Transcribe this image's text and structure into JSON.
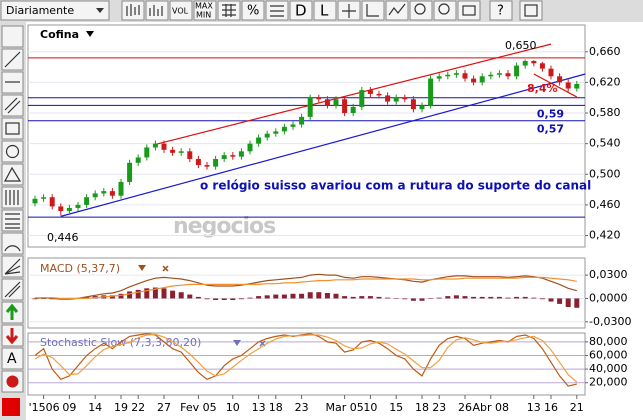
{
  "toolbar": {
    "period": "Diariamente",
    "vol": "VOL",
    "max": "MAX",
    "min": "MIN",
    "d": "D",
    "l": "L",
    "help": "?"
  },
  "left_tools": {
    "text_tool": "A"
  },
  "chart_data": [
    {
      "type": "candlestick",
      "title": "Cofina",
      "watermark": "negocios",
      "up_color": "#1a9a1a",
      "down_color": "#cc1a1a",
      "open": [
        0.462,
        0.468,
        0.47,
        0.458,
        0.452,
        0.456,
        0.46,
        0.47,
        0.475,
        0.478,
        0.472,
        0.49,
        0.515,
        0.522,
        0.535,
        0.54,
        0.532,
        0.528,
        0.53,
        0.52,
        0.512,
        0.51,
        0.52,
        0.525,
        0.523,
        0.53,
        0.54,
        0.548,
        0.553,
        0.556,
        0.562,
        0.565,
        0.575,
        0.6,
        0.598,
        0.59,
        0.598,
        0.58,
        0.588,
        0.61,
        0.605,
        0.603,
        0.595,
        0.6,
        0.598,
        0.585,
        0.59,
        0.625,
        0.628,
        0.63,
        0.632,
        0.625,
        0.62,
        0.628,
        0.63,
        0.632,
        0.628,
        0.642,
        0.648,
        0.645,
        0.638,
        0.628,
        0.62,
        0.612
      ],
      "high": [
        0.472,
        0.474,
        0.474,
        0.462,
        0.46,
        0.464,
        0.474,
        0.479,
        0.482,
        0.482,
        0.494,
        0.519,
        0.526,
        0.539,
        0.544,
        0.544,
        0.536,
        0.534,
        0.534,
        0.524,
        0.516,
        0.524,
        0.529,
        0.529,
        0.534,
        0.544,
        0.552,
        0.557,
        0.56,
        0.566,
        0.569,
        0.579,
        0.604,
        0.604,
        0.602,
        0.602,
        0.602,
        0.592,
        0.614,
        0.614,
        0.609,
        0.607,
        0.604,
        0.604,
        0.602,
        0.594,
        0.629,
        0.632,
        0.634,
        0.636,
        0.636,
        0.629,
        0.632,
        0.634,
        0.636,
        0.636,
        0.646,
        0.65,
        0.649,
        0.647,
        0.642,
        0.632,
        0.624,
        0.622
      ],
      "low": [
        0.458,
        0.464,
        0.454,
        0.446,
        0.448,
        0.452,
        0.456,
        0.466,
        0.471,
        0.468,
        0.468,
        0.486,
        0.511,
        0.518,
        0.531,
        0.528,
        0.524,
        0.524,
        0.516,
        0.508,
        0.506,
        0.506,
        0.516,
        0.519,
        0.519,
        0.526,
        0.536,
        0.544,
        0.549,
        0.552,
        0.558,
        0.561,
        0.571,
        0.594,
        0.586,
        0.586,
        0.576,
        0.576,
        0.584,
        0.601,
        0.599,
        0.591,
        0.591,
        0.594,
        0.581,
        0.581,
        0.586,
        0.621,
        0.624,
        0.626,
        0.621,
        0.616,
        0.616,
        0.624,
        0.626,
        0.624,
        0.624,
        0.638,
        0.641,
        0.634,
        0.624,
        0.616,
        0.608,
        0.608
      ],
      "close": [
        0.468,
        0.47,
        0.458,
        0.452,
        0.456,
        0.46,
        0.47,
        0.475,
        0.478,
        0.472,
        0.49,
        0.515,
        0.522,
        0.535,
        0.54,
        0.532,
        0.528,
        0.53,
        0.52,
        0.512,
        0.51,
        0.52,
        0.525,
        0.523,
        0.53,
        0.54,
        0.548,
        0.553,
        0.556,
        0.562,
        0.565,
        0.575,
        0.6,
        0.598,
        0.59,
        0.598,
        0.58,
        0.588,
        0.61,
        0.605,
        0.603,
        0.595,
        0.6,
        0.598,
        0.585,
        0.59,
        0.625,
        0.628,
        0.63,
        0.632,
        0.625,
        0.62,
        0.628,
        0.63,
        0.632,
        0.628,
        0.642,
        0.648,
        0.645,
        0.638,
        0.628,
        0.62,
        0.612,
        0.618
      ],
      "ylim": [
        0.405,
        0.695
      ],
      "yticks": [
        {
          "value": 0.42,
          "label": "0,420"
        },
        {
          "value": 0.46,
          "label": "0,460"
        },
        {
          "value": 0.5,
          "label": "0,500"
        },
        {
          "value": 0.54,
          "label": "0,540"
        },
        {
          "value": 0.58,
          "label": "0,580"
        },
        {
          "value": 0.62,
          "label": "0,620"
        },
        {
          "value": 0.66,
          "label": "0,660"
        }
      ],
      "xticks": [
        {
          "value": 1,
          "label": "'1506"
        },
        {
          "value": 4,
          "label": "09"
        },
        {
          "value": 7,
          "label": "14"
        },
        {
          "value": 10,
          "label": "19"
        },
        {
          "value": 12,
          "label": "22"
        },
        {
          "value": 15,
          "label": "27"
        },
        {
          "value": 19,
          "label": "Fev 05"
        },
        {
          "value": 23,
          "label": "10"
        },
        {
          "value": 26,
          "label": "13"
        },
        {
          "value": 28,
          "label": "18"
        },
        {
          "value": 31,
          "label": "23"
        },
        {
          "value": 36,
          "label": "Mar 05"
        },
        {
          "value": 39,
          "label": "10"
        },
        {
          "value": 42,
          "label": "15"
        },
        {
          "value": 45,
          "label": "18"
        },
        {
          "value": 47,
          "label": "23"
        },
        {
          "value": 50,
          "label": "26"
        },
        {
          "value": 53,
          "label": "Abr 08"
        },
        {
          "value": 58,
          "label": "13"
        },
        {
          "value": 60,
          "label": "16"
        },
        {
          "value": 63,
          "label": "21"
        }
      ],
      "hlines": [
        {
          "value": 0.652,
          "color": "#d01010"
        },
        {
          "value": 0.6,
          "color": "#1010b0"
        },
        {
          "value": 0.59,
          "color": "#1010b0",
          "label": "0,59"
        },
        {
          "value": 0.57,
          "color": "#1010b0",
          "label": "0,57"
        },
        {
          "value": 0.444,
          "color": "#1010b0"
        }
      ],
      "trendlines": [
        {
          "color": "#1a1ad0",
          "x": [
            3,
            64
          ],
          "y": [
            0.445,
            0.631
          ]
        },
        {
          "color": "#e01010",
          "x": [
            14,
            60
          ],
          "y": [
            0.539,
            0.67
          ]
        },
        {
          "color": "#e01010",
          "x": [
            58,
            63
          ],
          "y": [
            0.631,
            0.601
          ]
        }
      ],
      "annotations": [
        {
          "text": "0,446",
          "color": "#000000"
        },
        {
          "text": "0,650",
          "color": "#000000"
        },
        {
          "text": "8,4%",
          "color": "#e01010"
        },
        {
          "text": "o relógio suisso avariou com a rutura do suporte do canal",
          "color": "#1010b0"
        }
      ]
    },
    {
      "type": "macd",
      "title": "MACD (5,37,7)",
      "series": [
        {
          "color": "#a0501e",
          "values": [
            0.0,
            0.001,
            0.0,
            -0.001,
            -0.001,
            0.0,
            0.002,
            0.004,
            0.006,
            0.007,
            0.01,
            0.015,
            0.019,
            0.023,
            0.026,
            0.027,
            0.026,
            0.025,
            0.023,
            0.02,
            0.017,
            0.016,
            0.016,
            0.016,
            0.017,
            0.019,
            0.021,
            0.023,
            0.024,
            0.025,
            0.026,
            0.027,
            0.03,
            0.031,
            0.03,
            0.03,
            0.027,
            0.026,
            0.028,
            0.028,
            0.027,
            0.026,
            0.025,
            0.024,
            0.022,
            0.021,
            0.024,
            0.026,
            0.028,
            0.029,
            0.029,
            0.028,
            0.028,
            0.028,
            0.028,
            0.027,
            0.028,
            0.029,
            0.028,
            0.026,
            0.022,
            0.018,
            0.013,
            0.01
          ]
        },
        {
          "color": "#f09030",
          "values": [
            0.001,
            0.001,
            0.001,
            0.0,
            0.0,
            0.0,
            0.0,
            0.001,
            0.002,
            0.003,
            0.004,
            0.006,
            0.008,
            0.01,
            0.012,
            0.014,
            0.016,
            0.017,
            0.018,
            0.018,
            0.018,
            0.018,
            0.018,
            0.018,
            0.018,
            0.018,
            0.018,
            0.019,
            0.019,
            0.02,
            0.02,
            0.021,
            0.022,
            0.023,
            0.023,
            0.024,
            0.024,
            0.024,
            0.025,
            0.025,
            0.025,
            0.025,
            0.025,
            0.025,
            0.025,
            0.024,
            0.024,
            0.025,
            0.025,
            0.025,
            0.026,
            0.026,
            0.026,
            0.026,
            0.026,
            0.026,
            0.026,
            0.027,
            0.027,
            0.027,
            0.026,
            0.025,
            0.024,
            0.022
          ]
        }
      ],
      "histogram": {
        "color": "#8a2030",
        "values": [
          -0.001,
          0,
          -0.001,
          -0.001,
          -0.001,
          0,
          0.002,
          0.003,
          0.004,
          0.004,
          0.006,
          0.009,
          0.011,
          0.013,
          0.014,
          0.013,
          0.01,
          0.008,
          0.005,
          0.002,
          -0.001,
          -0.002,
          -0.002,
          -0.002,
          -0.001,
          0.001,
          0.003,
          0.004,
          0.005,
          0.005,
          0.006,
          0.006,
          0.008,
          0.008,
          0.007,
          0.006,
          0.003,
          0.002,
          0.003,
          0.003,
          0.002,
          0.001,
          0,
          -0.001,
          -0.003,
          -0.003,
          0,
          0.001,
          0.003,
          0.004,
          0.003,
          0.002,
          0.002,
          0.002,
          0.002,
          0.001,
          0.002,
          0.002,
          0.001,
          -0.001,
          -0.004,
          -0.007,
          -0.011,
          -0.012
        ]
      },
      "ylim": [
        -0.038,
        0.052
      ],
      "yticks": [
        {
          "value": -0.03,
          "label": "-0,0300"
        },
        {
          "value": 0,
          "label": "0,0000"
        },
        {
          "value": 0.03,
          "label": "0,0300"
        }
      ]
    },
    {
      "type": "stochastic",
      "title": "Stochastic Slow (7,3,3,80,20)",
      "series": [
        {
          "color": "#c05a10",
          "values": [
            60,
            70,
            40,
            25,
            30,
            45,
            60,
            70,
            78,
            70,
            80,
            88,
            90,
            92,
            90,
            80,
            70,
            65,
            50,
            35,
            25,
            30,
            45,
            55,
            60,
            70,
            80,
            85,
            88,
            90,
            88,
            90,
            92,
            88,
            80,
            78,
            65,
            68,
            80,
            82,
            78,
            70,
            60,
            55,
            40,
            30,
            55,
            75,
            85,
            88,
            85,
            75,
            78,
            80,
            82,
            80,
            88,
            90,
            85,
            70,
            50,
            30,
            15,
            18
          ]
        },
        {
          "color": "#f0a040",
          "values": [
            55,
            62,
            57,
            45,
            32,
            33,
            45,
            58,
            69,
            73,
            76,
            79,
            86,
            90,
            91,
            87,
            80,
            72,
            62,
            50,
            37,
            30,
            33,
            43,
            53,
            62,
            70,
            78,
            84,
            88,
            89,
            89,
            90,
            90,
            87,
            82,
            74,
            70,
            71,
            77,
            80,
            77,
            69,
            62,
            52,
            42,
            42,
            53,
            72,
            83,
            86,
            83,
            79,
            78,
            80,
            81,
            83,
            86,
            88,
            82,
            68,
            50,
            32,
            21
          ]
        }
      ],
      "ylim": [
        2,
        93
      ],
      "yticks": [
        {
          "value": 20,
          "label": "20,000"
        },
        {
          "value": 40,
          "label": "40,000"
        },
        {
          "value": 60,
          "label": "60,000"
        },
        {
          "value": 80,
          "label": "80,000"
        }
      ]
    }
  ]
}
